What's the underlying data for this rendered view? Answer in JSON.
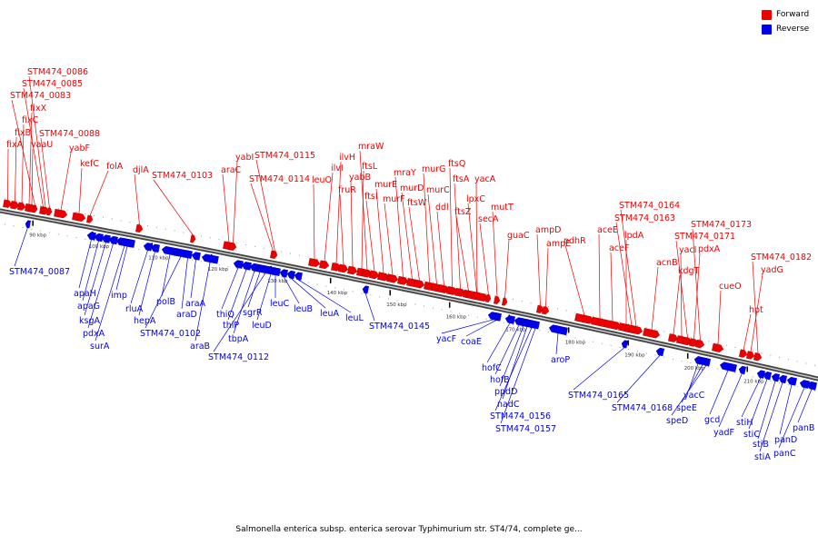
{
  "legend": {
    "forward_label": "Forward",
    "reverse_label": "Reverse",
    "forward_color": "#ee0000",
    "reverse_color": "#0000ee"
  },
  "caption": "Salmonella enterica subsp. enterica serovar Typhimurium str. ST4/74, complete ge...",
  "ticks": [
    {
      "kbp": 90,
      "label": "90 kbp"
    },
    {
      "kbp": 100,
      "label": "100 kbp"
    },
    {
      "kbp": 110,
      "label": "110 kbp"
    },
    {
      "kbp": 120,
      "label": "120 kbp"
    },
    {
      "kbp": 130,
      "label": "130 kbp"
    },
    {
      "kbp": 140,
      "label": "140 kbp"
    },
    {
      "kbp": 150,
      "label": "150 kbp"
    },
    {
      "kbp": 160,
      "label": "160 kbp"
    },
    {
      "kbp": 170,
      "label": "170 kbp"
    },
    {
      "kbp": 180,
      "label": "180 kbp"
    },
    {
      "kbp": 190,
      "label": "190 kbp"
    },
    {
      "kbp": 200,
      "label": "200 kbp"
    },
    {
      "kbp": 210,
      "label": "210 kbp"
    }
  ],
  "forward_genes": [
    "fixA",
    "fixB",
    "fixC",
    "fixX",
    "STM474_0083",
    "STM474_0085",
    "STM474_0086",
    "vaaU",
    "STM474_0088",
    "yabF",
    "kefC",
    "folA",
    "djlA",
    "STM474_0103",
    "araC",
    "yabI",
    "STM474_0114",
    "STM474_0115",
    "leuO",
    "ilvI",
    "ilvH",
    "fruR",
    "yabB",
    "ftsL",
    "mraW",
    "ftsI",
    "murE",
    "murF",
    "mraY",
    "murD",
    "ftsW",
    "murG",
    "murC",
    "ddl",
    "ftsQ",
    "ftsA",
    "ftsZ",
    "lpxC",
    "yacA",
    "secA",
    "mutT",
    "guaC",
    "ampD",
    "ampE",
    "pdhR",
    "aceE",
    "aceF",
    "lpdA",
    "STM474_0163",
    "STM474_0164",
    "acnB",
    "kdgT",
    "yacI",
    "STM474_0171",
    "pdxA",
    "STM474_0173",
    "cueO",
    "hpt",
    "yadG",
    "STM474_0182"
  ],
  "reverse_genes": [
    "STM474_0087",
    "apaH",
    "apaG",
    "ksgA",
    "pdxA",
    "surA",
    "imp",
    "rluA",
    "hepA",
    "polB",
    "STM474_0102",
    "araD",
    "araA",
    "araB",
    "thiQ",
    "thiP",
    "tbpA",
    "sgrR",
    "STM474_0112",
    "leuD",
    "leuC",
    "leuB",
    "leuA",
    "leuL",
    "STM474_0145",
    "yacF",
    "coaE",
    "hofC",
    "hofB",
    "ppdD",
    "nadC",
    "STM474_0156",
    "STM474_0157",
    "aroP",
    "STM474_0165",
    "STM474_0168",
    "yacC",
    "speE",
    "speD",
    "gcd",
    "yadF",
    "stiH",
    "stiC",
    "stiB",
    "stiA",
    "panD",
    "panC",
    "panB"
  ]
}
